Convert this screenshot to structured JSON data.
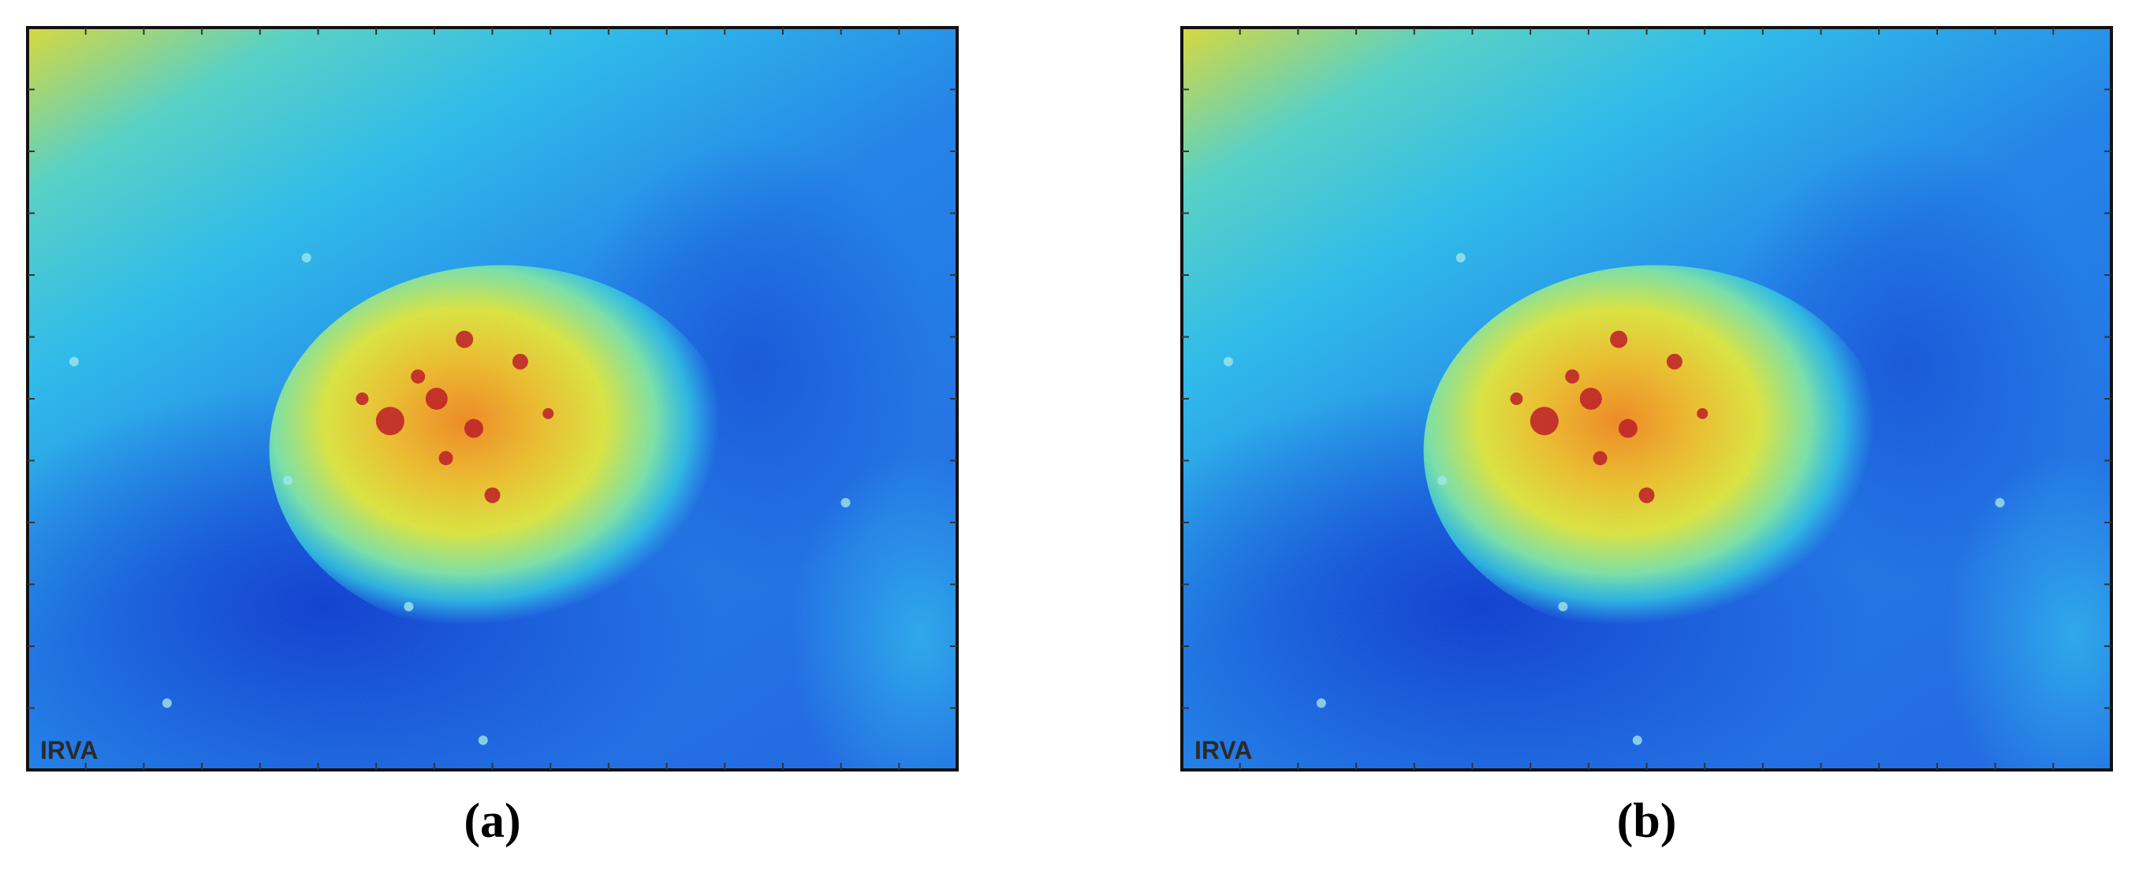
{
  "panels": [
    {
      "caption": "(a)",
      "overlay_text": "IRVA"
    },
    {
      "caption": "(b)",
      "overlay_text": "IRVA"
    }
  ]
}
